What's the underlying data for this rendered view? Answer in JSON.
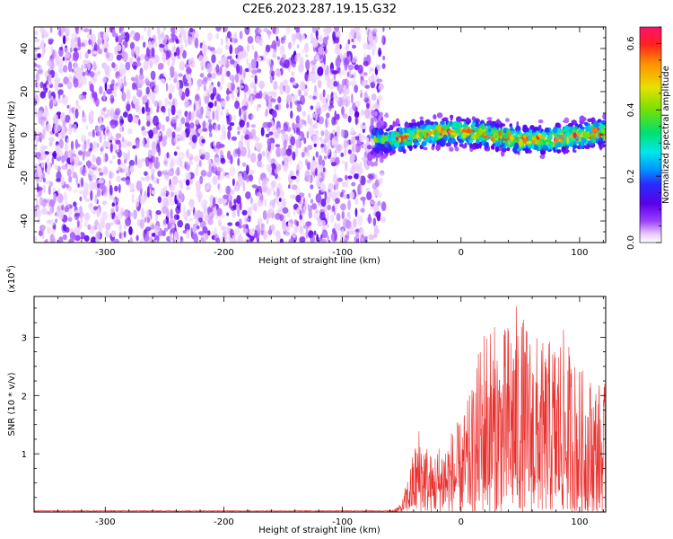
{
  "chart_data": [
    {
      "type": "heatmap",
      "title": "C2E6.2023.287.19.15.G32",
      "xlabel": "Height of straight line (km)",
      "ylabel": "Frequency (Hz)",
      "xlim": [
        -360,
        122
      ],
      "ylim": [
        -50,
        50
      ],
      "x_ticks": [
        -300,
        -200,
        -100,
        0,
        100
      ],
      "y_ticks": [
        -40,
        -20,
        0,
        20,
        40
      ],
      "colorbar": {
        "label": "Normalized spectral amplitude",
        "range": [
          0.0,
          0.65
        ],
        "ticks": [
          0.0,
          0.2,
          0.4,
          0.6
        ],
        "colormap": [
          "#ffffff",
          "#e8c8ff",
          "#9a40ff",
          "#5a00e8",
          "#2a2aff",
          "#0096ff",
          "#00e8e8",
          "#00e070",
          "#7ae000",
          "#e8e000",
          "#ff9000",
          "#ff2020",
          "#ff1070"
        ]
      },
      "regions": [
        {
          "x_range": [
            -360,
            -75
          ],
          "frequency_band": [
            -50,
            50
          ],
          "amplitude": "low (~0.05-0.15)"
        },
        {
          "x_range": [
            -75,
            122
          ],
          "frequency_band": [
            -10,
            10
          ],
          "amplitude": "high (up to ~0.65)"
        }
      ],
      "grid": false
    },
    {
      "type": "line",
      "xlabel": "Height of straight line (km)",
      "ylabel": "SNR (10 * v/v)",
      "multiplier_label": "(x10",
      "multiplier_exp": "4",
      "multiplier_close": ")",
      "xlim": [
        -360,
        122
      ],
      "ylim": [
        0,
        3.7
      ],
      "x_ticks": [
        -300,
        -200,
        -100,
        0,
        100
      ],
      "y_ticks": [
        1,
        2,
        3
      ],
      "series_color": "#e8302e",
      "envelope": [
        {
          "x": -360,
          "y": 0.02
        },
        {
          "x": -60,
          "y": 0.02
        },
        {
          "x": -50,
          "y": 0.15
        },
        {
          "x": -42,
          "y": 0.9
        },
        {
          "x": -35,
          "y": 1.55
        },
        {
          "x": -25,
          "y": 1.0
        },
        {
          "x": -15,
          "y": 1.3
        },
        {
          "x": 0,
          "y": 1.6
        },
        {
          "x": 10,
          "y": 2.2
        },
        {
          "x": 20,
          "y": 3.4
        },
        {
          "x": 35,
          "y": 3.1
        },
        {
          "x": 45,
          "y": 3.65
        },
        {
          "x": 55,
          "y": 3.3
        },
        {
          "x": 70,
          "y": 2.9
        },
        {
          "x": 85,
          "y": 3.2
        },
        {
          "x": 100,
          "y": 2.5
        },
        {
          "x": 122,
          "y": 2.2
        }
      ],
      "grid": false
    }
  ]
}
